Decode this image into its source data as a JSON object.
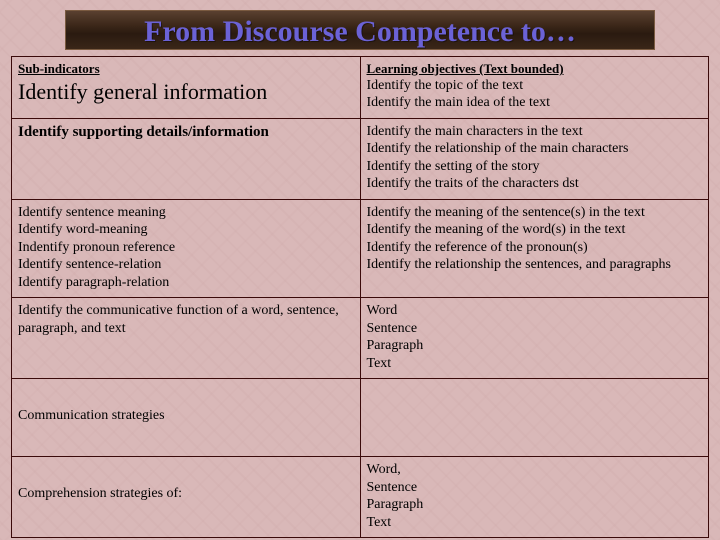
{
  "title": "From Discourse Competence to…",
  "headers": {
    "left": "Sub-indicators",
    "right": "Learning objectives  (Text bounded)"
  },
  "rows": [
    {
      "left_big": "Identify general information",
      "right": "Identify the topic of the text\nIdentify the main idea of the text"
    },
    {
      "left_bold": "Identify supporting details/information",
      "right": "Identify the main characters in the text\nIdentify the relationship of the main characters\nIdentify the setting of the story\nIdentify the traits of the characters dst"
    },
    {
      "left": "Identify sentence meaning\nIdentify word-meaning\nIndentify pronoun reference\nIdentify sentence-relation\nIdentify paragraph-relation",
      "right": "Identify the meaning of the sentence(s) in the text\nIdentify the meaning of the word(s) in the text\nIdentify the reference of the pronoun(s)\nIdentify the relationship the sentences, and paragraphs"
    },
    {
      "left": "Identify the communicative function of a word, sentence, paragraph, and text",
      "right": "Word\nSentence\nParagraph\nText"
    },
    {
      "left": "Communication strategies",
      "right": ""
    },
    {
      "left": "Comprehension strategies of:",
      "right": "Word,\nSentence\nParagraph\nText"
    }
  ]
}
